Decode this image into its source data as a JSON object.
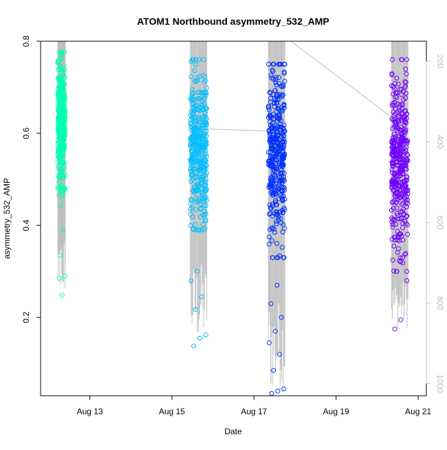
{
  "chart_data": {
    "type": "scatter",
    "title": "ATOM1 Northbound asymmetry_532_AMP",
    "xlabel": "Date",
    "ylabel": "asymmetry_532_AMP",
    "x_ticks": [
      "Aug 13",
      "Aug 15",
      "Aug 17",
      "Aug 19",
      "Aug 21"
    ],
    "x_tick_days": [
      13,
      15,
      17,
      19,
      21
    ],
    "xlim_days": [
      11.8,
      21.2
    ],
    "y_ticks": [
      0.2,
      0.4,
      0.6,
      0.8
    ],
    "ylim": [
      0.03,
      0.8
    ],
    "y2_ticks": [
      200,
      400,
      600,
      800,
      1000
    ],
    "y2lim": [
      1030,
      150
    ],
    "grid": false,
    "legend": "none",
    "colors": {
      "axis": "#000000",
      "secondary_axis": "#bebebe",
      "profile_lines": "#bebebe"
    },
    "series": [
      {
        "color": "#00ffb0",
        "x_range_days": [
          12.22,
          12.4
        ],
        "y_typical_range": [
          0.48,
          0.75
        ],
        "y_center": 0.62,
        "y_min": 0.248,
        "y_max": 0.776,
        "low_outliers": [
          0.285,
          0.248,
          0.29,
          0.335,
          0.39
        ]
      },
      {
        "color": "#00c0ff",
        "x_range_days": [
          15.45,
          15.85
        ],
        "y_typical_range": [
          0.44,
          0.76
        ],
        "y_center": 0.57,
        "y_min": 0.138,
        "y_max": 0.76,
        "low_outliers": [
          0.138,
          0.155,
          0.162,
          0.217,
          0.245,
          0.28,
          0.3
        ]
      },
      {
        "color": "#0030ff",
        "x_range_days": [
          17.35,
          17.75
        ],
        "y_typical_range": [
          0.38,
          0.75
        ],
        "y_center": 0.56,
        "y_min": 0.035,
        "y_max": 0.75,
        "low_outliers": [
          0.035,
          0.04,
          0.045,
          0.085,
          0.12,
          0.145,
          0.17,
          0.2,
          0.23,
          0.27
        ]
      },
      {
        "color": "#7000ff",
        "x_range_days": [
          20.35,
          20.75
        ],
        "y_typical_range": [
          0.35,
          0.75
        ],
        "y_center": 0.54,
        "y_min": 0.175,
        "y_max": 0.76,
        "low_outliers": [
          0.175,
          0.195,
          0.28,
          0.3,
          0.33
        ]
      }
    ],
    "profile_line_segments": [
      {
        "x_days": [
          15.7,
          17.35
        ],
        "y": [
          0.61,
          0.605
        ]
      },
      {
        "x_days": [
          17.9,
          20.35
        ],
        "y": [
          0.8,
          0.635
        ]
      }
    ]
  }
}
